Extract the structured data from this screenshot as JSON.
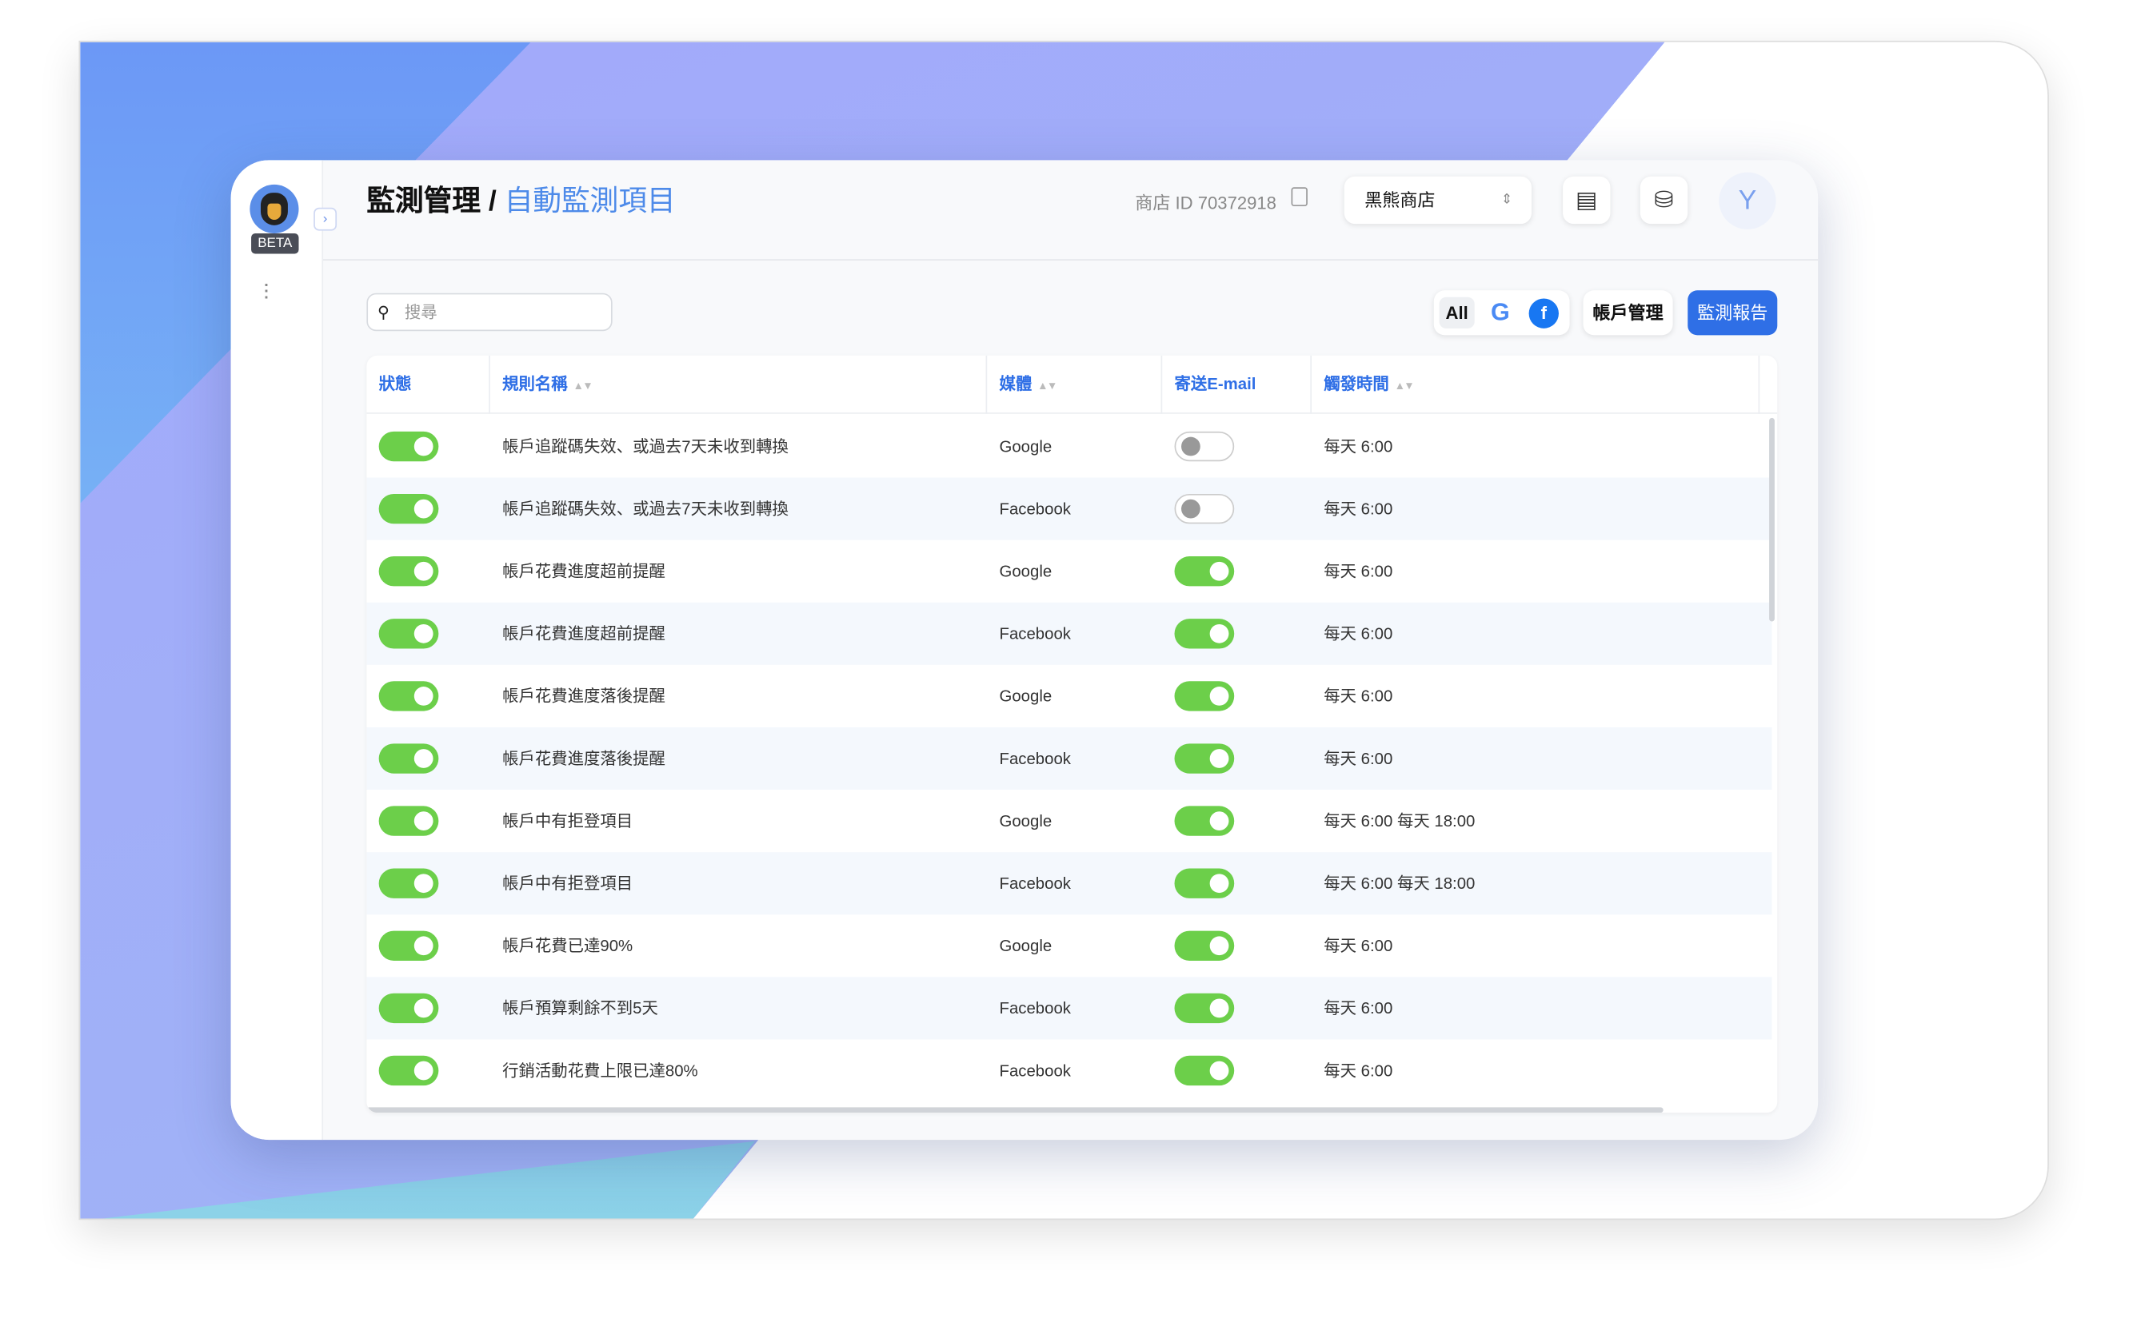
{
  "sidebar": {
    "beta_label": "BETA"
  },
  "header": {
    "breadcrumb_parent": "監測管理 / ",
    "breadcrumb_current": "自動監測項目",
    "shop_id_label": "商店 ID 70372918",
    "shop_select": "黑熊商店",
    "avatar_initial": "Y"
  },
  "toolbar": {
    "search_placeholder": "搜尋",
    "filter_all": "All",
    "filter_google": "G",
    "filter_facebook": "f",
    "account_button": "帳戶管理",
    "report_button": "監測報告"
  },
  "colors": {
    "accent": "#2f6fe6",
    "toggle_on": "#6ccf4a"
  },
  "table": {
    "columns": [
      "狀態",
      "規則名稱",
      "媒體",
      "寄送E-mail",
      "觸發時間"
    ],
    "rows": [
      {
        "status": true,
        "name": "帳戶追蹤碼失效、或過去7天未收到轉換",
        "media": "Google",
        "email": false,
        "time": "每天 6:00"
      },
      {
        "status": true,
        "name": "帳戶追蹤碼失效、或過去7天未收到轉換",
        "media": "Facebook",
        "email": false,
        "time": "每天 6:00"
      },
      {
        "status": true,
        "name": "帳戶花費進度超前提醒",
        "media": "Google",
        "email": true,
        "time": "每天 6:00"
      },
      {
        "status": true,
        "name": "帳戶花費進度超前提醒",
        "media": "Facebook",
        "email": true,
        "time": "每天 6:00"
      },
      {
        "status": true,
        "name": "帳戶花費進度落後提醒",
        "media": "Google",
        "email": true,
        "time": "每天 6:00"
      },
      {
        "status": true,
        "name": "帳戶花費進度落後提醒",
        "media": "Facebook",
        "email": true,
        "time": "每天 6:00"
      },
      {
        "status": true,
        "name": "帳戶中有拒登項目",
        "media": "Google",
        "email": true,
        "time": "每天 6:00 每天 18:00"
      },
      {
        "status": true,
        "name": "帳戶中有拒登項目",
        "media": "Facebook",
        "email": true,
        "time": "每天 6:00 每天 18:00"
      },
      {
        "status": true,
        "name": "帳戶花費已達90%",
        "media": "Google",
        "email": true,
        "time": "每天 6:00"
      },
      {
        "status": true,
        "name": "帳戶預算剩餘不到5天",
        "media": "Facebook",
        "email": true,
        "time": "每天 6:00"
      },
      {
        "status": true,
        "name": "行銷活動花費上限已達80%",
        "media": "Facebook",
        "email": true,
        "time": "每天 6:00"
      }
    ]
  }
}
